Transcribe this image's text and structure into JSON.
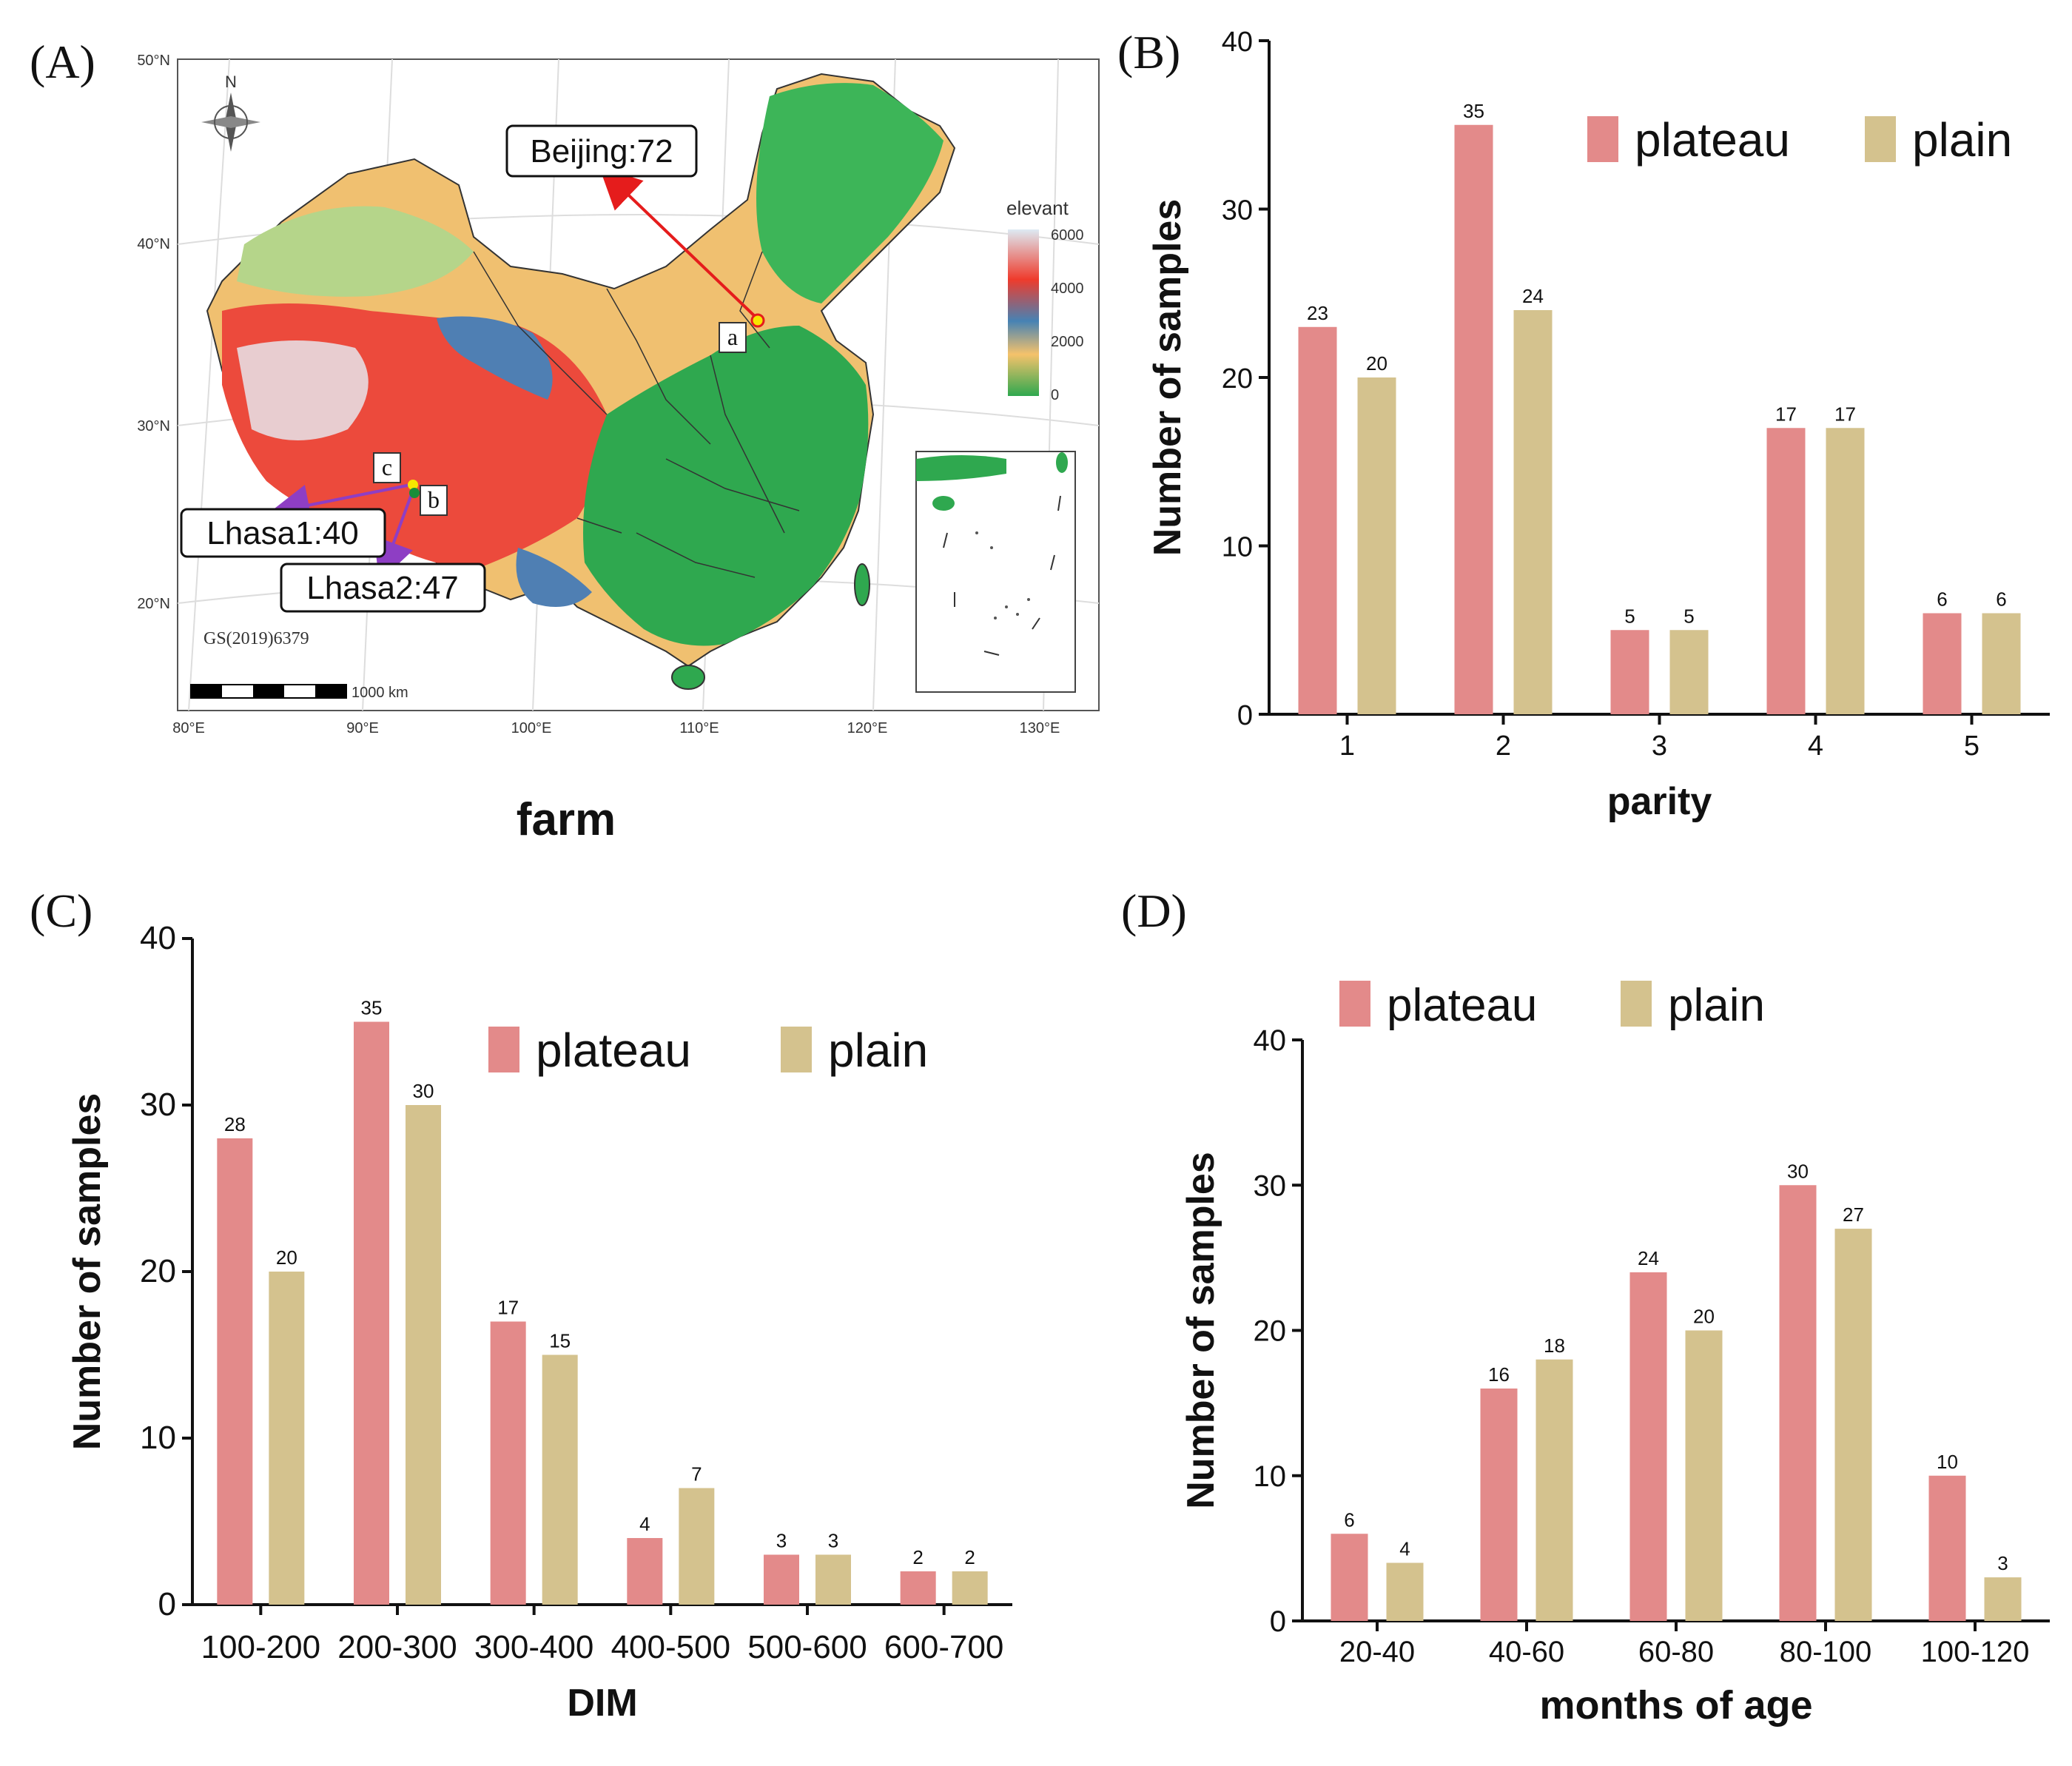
{
  "panels": {
    "a": {
      "label": "(A)"
    },
    "b": {
      "label": "(B)"
    },
    "c": {
      "label": "(C)"
    },
    "d": {
      "label": "(D)"
    }
  },
  "map": {
    "xlabel": "farm",
    "north": "N",
    "legend_title": "elevant",
    "legend_ticks": [
      "6000",
      "4000",
      "2000",
      "0"
    ],
    "legend_colors": [
      "#ddeaf3",
      "#ef3b2c",
      "#4682b4",
      "#f5c26b",
      "#2fa84f"
    ],
    "lat_labels": [
      "50°N",
      "40°N",
      "30°N",
      "20°N"
    ],
    "lon_labels": [
      "80°E",
      "90°E",
      "100°E",
      "110°E",
      "120°E",
      "130°E"
    ],
    "scale_label": "1000 km",
    "approval": "GS(2019)6379",
    "callouts": {
      "beijing": "Beijing:72",
      "lhasa1": "Lhasa1:40",
      "lhasa2": "Lhasa2:47"
    },
    "site_labels": {
      "a": "a",
      "b": "b",
      "c": "c"
    }
  },
  "colors": {
    "plateau": "#e38a8a",
    "plain": "#d4c28e"
  },
  "chart_data": [
    {
      "id": "B",
      "type": "bar",
      "title": "",
      "xlabel": "parity",
      "ylabel": "Number of samples",
      "categories": [
        "1",
        "2",
        "3",
        "4",
        "5"
      ],
      "series": [
        {
          "name": "plateau",
          "values": [
            23,
            35,
            5,
            17,
            6
          ]
        },
        {
          "name": "plain",
          "values": [
            20,
            24,
            5,
            17,
            6
          ]
        }
      ],
      "ylim": [
        0,
        40
      ],
      "yticks": [
        0,
        10,
        20,
        30,
        40
      ],
      "grid": false,
      "legend": "top-right"
    },
    {
      "id": "C",
      "type": "bar",
      "title": "",
      "xlabel": "DIM",
      "ylabel": "Number of samples",
      "categories": [
        "100-200",
        "200-300",
        "300-400",
        "400-500",
        "500-600",
        "600-700"
      ],
      "series": [
        {
          "name": "plateau",
          "values": [
            28,
            35,
            17,
            4,
            3,
            2
          ]
        },
        {
          "name": "plain",
          "values": [
            20,
            30,
            15,
            7,
            3,
            2
          ]
        }
      ],
      "ylim": [
        0,
        40
      ],
      "yticks": [
        0,
        10,
        20,
        30,
        40
      ],
      "grid": false,
      "legend": "top-right"
    },
    {
      "id": "D",
      "type": "bar",
      "title": "",
      "xlabel": "months of age",
      "ylabel": "Number of samples",
      "categories": [
        "20-40",
        "40-60",
        "60-80",
        "80-100",
        "100-120"
      ],
      "series": [
        {
          "name": "plateau",
          "values": [
            6,
            16,
            24,
            30,
            10
          ]
        },
        {
          "name": "plain",
          "values": [
            4,
            18,
            20,
            27,
            3
          ]
        }
      ],
      "ylim": [
        0,
        40
      ],
      "yticks": [
        0,
        10,
        20,
        30,
        40
      ],
      "grid": false,
      "legend": "top-left"
    }
  ]
}
